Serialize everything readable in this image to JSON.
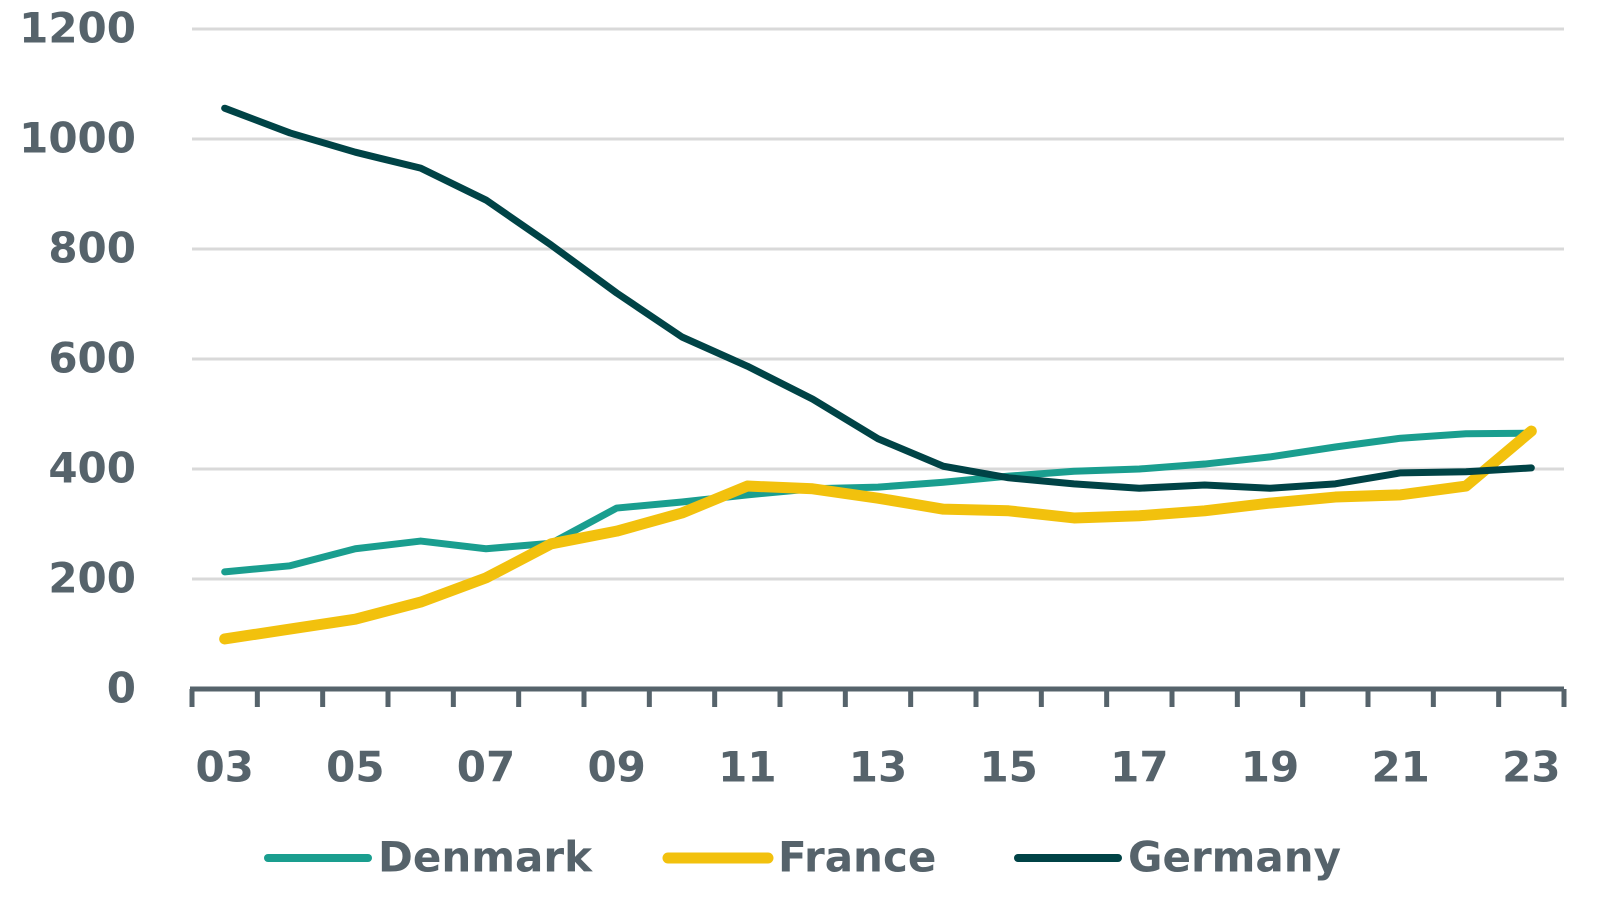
{
  "chart_data": {
    "type": "line",
    "categories": [
      "03",
      null,
      "05",
      null,
      "07",
      null,
      "09",
      null,
      "11",
      null,
      "13",
      null,
      "15",
      null,
      "17",
      null,
      "19",
      null,
      "21",
      null,
      "23"
    ],
    "series": [
      {
        "name": "Denmark",
        "color": "#1a9e8f",
        "values": [
          213,
          224,
          255,
          269,
          255,
          265,
          329,
          340,
          353,
          364,
          367,
          376,
          387,
          396,
          400,
          409,
          422,
          440,
          456,
          464,
          465
        ]
      },
      {
        "name": "France",
        "color": "#f2c10d",
        "values": [
          91,
          109,
          127,
          158,
          202,
          264,
          287,
          320,
          369,
          364,
          347,
          327,
          324,
          311,
          315,
          324,
          338,
          349,
          353,
          369,
          469
        ]
      },
      {
        "name": "Germany",
        "color": "#004346",
        "values": [
          1056,
          1011,
          976,
          947,
          889,
          807,
          720,
          640,
          587,
          527,
          455,
          405,
          384,
          373,
          365,
          371,
          365,
          373,
          393,
          395,
          402
        ]
      }
    ],
    "ylim": [
      0,
      1200
    ],
    "yticks": [
      0,
      200,
      400,
      600,
      800,
      1000,
      1200
    ],
    "grid": true,
    "legend": "bottom"
  }
}
